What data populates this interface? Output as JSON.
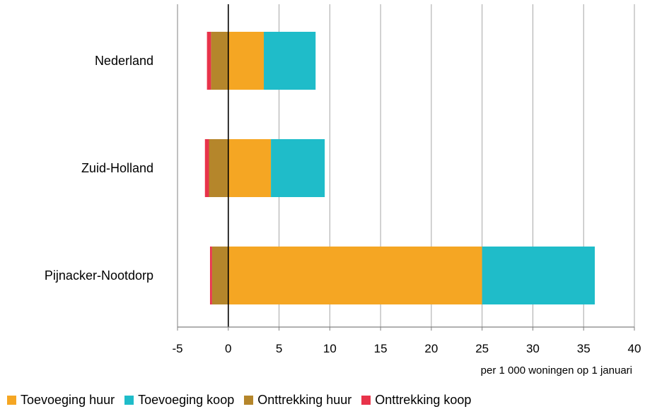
{
  "chart_data": {
    "type": "bar",
    "orientation": "horizontal",
    "stacked": true,
    "categories": [
      "Nederland",
      "Zuid-Holland",
      "Pijnacker-Nootdorp"
    ],
    "series": [
      {
        "name": "Toevoeging huur",
        "color": "#f5a623",
        "values": [
          3.5,
          4.2,
          25.0
        ]
      },
      {
        "name": "Toevoeging koop",
        "color": "#1fbcc9",
        "values": [
          5.1,
          5.3,
          11.1
        ]
      },
      {
        "name": "Onttrekking huur",
        "color": "#b5862b",
        "values": [
          -1.7,
          -1.9,
          -1.6
        ]
      },
      {
        "name": "Onttrekking koop",
        "color": "#e8334a",
        "values": [
          -0.4,
          -0.4,
          -0.2
        ]
      }
    ],
    "xlim": [
      -5,
      40
    ],
    "xticks": [
      -5,
      0,
      5,
      10,
      15,
      20,
      25,
      30,
      35,
      40
    ],
    "xlabel": "per 1 000 woningen op 1 januari",
    "grid": true,
    "legend_position": "bottom"
  }
}
